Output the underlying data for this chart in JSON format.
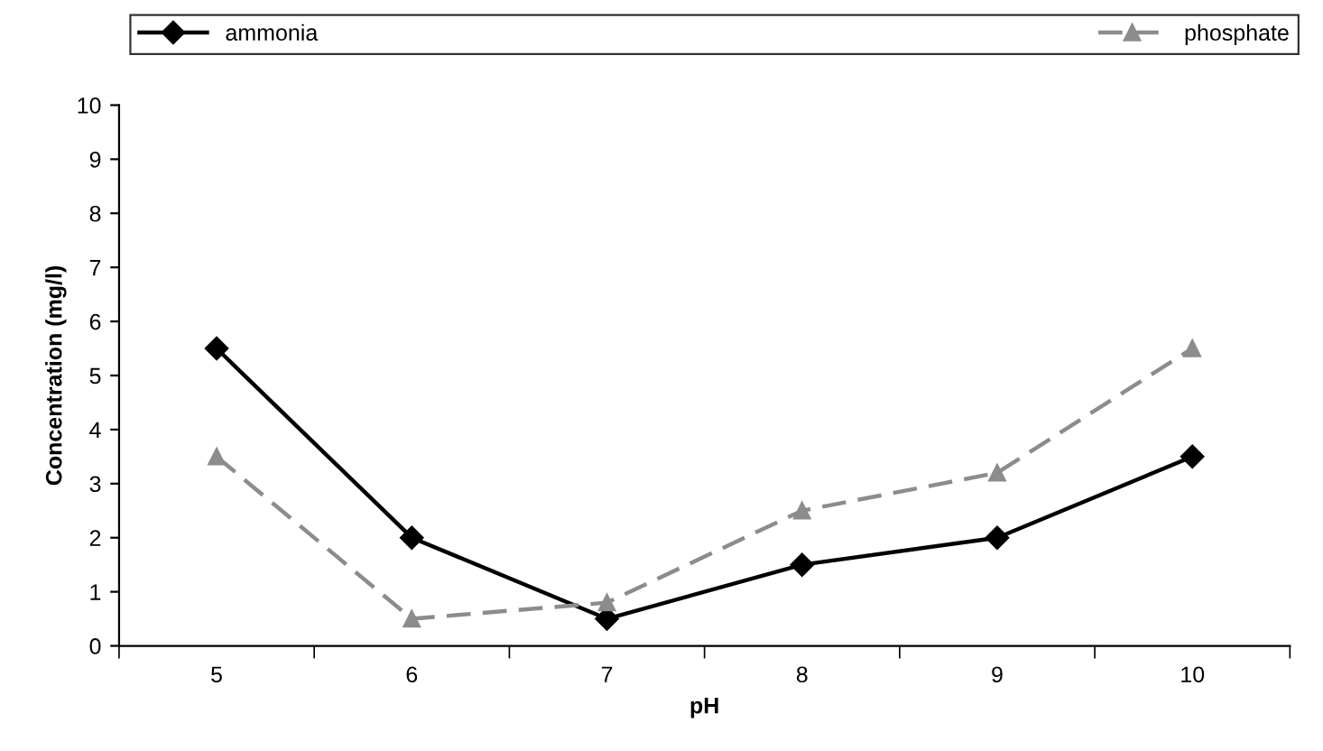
{
  "chart_data": {
    "type": "line",
    "xlabel": "pH",
    "ylabel": "Concentration (mg/l)",
    "categories": [
      "5",
      "6",
      "7",
      "8",
      "9",
      "10"
    ],
    "series": [
      {
        "name": "ammonia",
        "color": "#000000",
        "values": [
          5.5,
          2.0,
          0.5,
          1.5,
          2.0,
          3.5
        ],
        "marker": "diamond",
        "line_style": "solid"
      },
      {
        "name": "phosphate",
        "color": "#8c8c8c",
        "values": [
          3.5,
          0.5,
          0.8,
          2.5,
          3.2,
          5.5
        ],
        "marker": "triangle",
        "line_style": "dashed"
      }
    ],
    "ylim": [
      0,
      10
    ],
    "yticks": [
      0,
      1,
      2,
      3,
      4,
      5,
      6,
      7,
      8,
      9,
      10
    ],
    "grid": false,
    "legend": "top"
  }
}
